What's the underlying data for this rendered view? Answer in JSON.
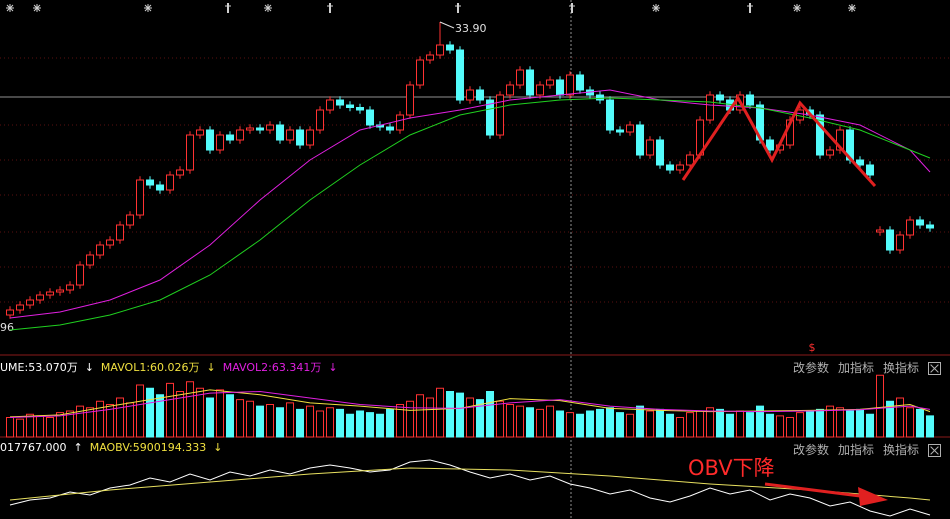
{
  "chart_data": [
    {
      "type": "candlestick",
      "up_color": "#ff3232",
      "down_color": "#54fcfc",
      "ylim": [
        20.58,
        34.78
      ],
      "high_label": "33.90",
      "low_label": "96",
      "dividend_marker": "$",
      "candles": [
        [
          22.18,
          22.53,
          22.03,
          22.38
        ],
        [
          22.38,
          22.73,
          22.23,
          22.58
        ],
        [
          22.58,
          22.93,
          22.43,
          22.78
        ],
        [
          22.78,
          23.13,
          22.63,
          22.98
        ],
        [
          22.98,
          23.25,
          22.83,
          23.1
        ],
        [
          23.1,
          23.33,
          22.95,
          23.18
        ],
        [
          23.18,
          23.53,
          23.03,
          23.38
        ],
        [
          23.38,
          24.33,
          23.23,
          24.18
        ],
        [
          24.18,
          24.73,
          24.03,
          24.58
        ],
        [
          24.58,
          25.13,
          24.43,
          24.98
        ],
        [
          24.98,
          25.33,
          24.83,
          25.18
        ],
        [
          25.18,
          25.93,
          25.03,
          25.78
        ],
        [
          25.78,
          26.33,
          25.63,
          26.18
        ],
        [
          26.18,
          27.73,
          26.03,
          27.58
        ],
        [
          27.58,
          27.73,
          27.23,
          27.38
        ],
        [
          27.38,
          27.53,
          27.03,
          27.18
        ],
        [
          27.18,
          27.93,
          27.03,
          27.78
        ],
        [
          27.78,
          28.13,
          27.63,
          27.98
        ],
        [
          27.98,
          29.53,
          27.83,
          29.38
        ],
        [
          29.38,
          29.73,
          29.23,
          29.58
        ],
        [
          29.58,
          29.73,
          28.63,
          28.78
        ],
        [
          28.78,
          29.53,
          28.63,
          29.38
        ],
        [
          29.38,
          29.53,
          29.03,
          29.18
        ],
        [
          29.18,
          29.73,
          29.03,
          29.58
        ],
        [
          29.58,
          29.81,
          29.43,
          29.66
        ],
        [
          29.66,
          29.81,
          29.43,
          29.58
        ],
        [
          29.58,
          29.93,
          29.43,
          29.78
        ],
        [
          29.78,
          29.93,
          29.03,
          29.18
        ],
        [
          29.18,
          29.73,
          29.03,
          29.58
        ],
        [
          29.58,
          29.73,
          28.83,
          28.98
        ],
        [
          28.98,
          29.73,
          28.83,
          29.58
        ],
        [
          29.58,
          30.53,
          29.43,
          30.38
        ],
        [
          30.38,
          30.93,
          30.23,
          30.78
        ],
        [
          30.78,
          30.93,
          30.43,
          30.58
        ],
        [
          30.58,
          30.73,
          30.33,
          30.48
        ],
        [
          30.48,
          30.63,
          30.23,
          30.38
        ],
        [
          30.38,
          30.53,
          29.63,
          29.78
        ],
        [
          29.78,
          29.93,
          29.55,
          29.7
        ],
        [
          29.7,
          29.85,
          29.43,
          29.58
        ],
        [
          29.58,
          30.33,
          29.43,
          30.18
        ],
        [
          30.18,
          31.53,
          30.03,
          31.38
        ],
        [
          31.38,
          32.53,
          31.23,
          32.38
        ],
        [
          32.38,
          32.73,
          32.23,
          32.58
        ],
        [
          32.58,
          33.9,
          32.43,
          32.98
        ],
        [
          32.98,
          33.13,
          32.63,
          32.78
        ],
        [
          32.78,
          32.93,
          30.63,
          30.78
        ],
        [
          30.78,
          31.33,
          30.63,
          31.18
        ],
        [
          31.18,
          31.33,
          30.63,
          30.78
        ],
        [
          30.78,
          30.93,
          29.23,
          29.38
        ],
        [
          29.38,
          31.13,
          29.23,
          30.98
        ],
        [
          30.98,
          31.53,
          30.83,
          31.38
        ],
        [
          31.38,
          32.13,
          31.23,
          31.98
        ],
        [
          31.98,
          32.13,
          30.83,
          30.98
        ],
        [
          30.98,
          31.53,
          30.83,
          31.38
        ],
        [
          31.38,
          31.73,
          31.23,
          31.58
        ],
        [
          31.58,
          31.73,
          30.83,
          30.98
        ],
        [
          30.98,
          31.93,
          30.83,
          31.78
        ],
        [
          31.78,
          31.93,
          31.03,
          31.18
        ],
        [
          31.18,
          31.33,
          30.83,
          30.98
        ],
        [
          30.98,
          31.13,
          30.63,
          30.78
        ],
        [
          30.78,
          30.93,
          29.43,
          29.58
        ],
        [
          29.58,
          29.73,
          29.35,
          29.5
        ],
        [
          29.5,
          29.93,
          29.35,
          29.78
        ],
        [
          29.78,
          29.93,
          28.43,
          28.58
        ],
        [
          28.58,
          29.33,
          28.43,
          29.18
        ],
        [
          29.18,
          29.33,
          28.03,
          28.18
        ],
        [
          28.18,
          28.33,
          27.83,
          27.98
        ],
        [
          27.98,
          28.33,
          27.83,
          28.18
        ],
        [
          28.18,
          28.73,
          28.03,
          28.58
        ],
        [
          28.58,
          30.13,
          28.43,
          29.98
        ],
        [
          29.98,
          31.13,
          29.83,
          30.98
        ],
        [
          30.98,
          31.13,
          30.63,
          30.78
        ],
        [
          30.78,
          30.93,
          30.23,
          30.38
        ],
        [
          30.38,
          31.13,
          30.23,
          30.98
        ],
        [
          30.98,
          31.13,
          30.43,
          30.58
        ],
        [
          30.58,
          30.73,
          29.03,
          29.18
        ],
        [
          29.18,
          29.33,
          28.63,
          28.78
        ],
        [
          28.78,
          29.13,
          28.63,
          28.98
        ],
        [
          28.98,
          30.13,
          28.83,
          29.98
        ],
        [
          29.98,
          30.53,
          29.83,
          30.38
        ],
        [
          30.38,
          30.53,
          30.03,
          30.18
        ],
        [
          30.18,
          30.33,
          28.43,
          28.58
        ],
        [
          28.58,
          28.93,
          28.43,
          28.78
        ],
        [
          28.78,
          29.73,
          28.63,
          29.58
        ],
        [
          29.58,
          29.73,
          28.23,
          28.38
        ],
        [
          28.38,
          28.53,
          28.03,
          28.18
        ],
        [
          28.18,
          28.33,
          27.63,
          27.78
        ],
        [
          25.5,
          25.73,
          25.35,
          25.58
        ],
        [
          25.58,
          25.73,
          24.63,
          24.78
        ],
        [
          24.78,
          25.53,
          24.63,
          25.38
        ],
        [
          25.38,
          26.13,
          25.23,
          25.98
        ],
        [
          25.98,
          26.13,
          25.63,
          25.78
        ],
        [
          25.78,
          25.93,
          25.51,
          25.66
        ]
      ],
      "series": [
        {
          "color": "#e020e0",
          "x": [
            0,
            5,
            10,
            15,
            20,
            25,
            30,
            35,
            40,
            45,
            50,
            55,
            60,
            65,
            70,
            75,
            80,
            85,
            90,
            92
          ],
          "values": [
            22.06,
            22.3,
            22.78,
            23.58,
            24.98,
            26.78,
            28.38,
            29.58,
            30.06,
            30.38,
            30.78,
            30.98,
            31.18,
            30.78,
            30.58,
            30.46,
            30.18,
            29.78,
            28.78,
            27.9
          ]
        },
        {
          "color": "#20d020",
          "x": [
            0,
            5,
            10,
            15,
            20,
            25,
            30,
            35,
            40,
            45,
            50,
            55,
            60,
            65,
            70,
            75,
            80,
            85,
            90,
            92
          ],
          "values": [
            21.58,
            21.78,
            22.18,
            22.78,
            23.78,
            25.18,
            26.78,
            28.18,
            29.38,
            30.18,
            30.58,
            30.78,
            30.86,
            30.78,
            30.7,
            30.46,
            30.06,
            29.58,
            28.78,
            28.46
          ]
        }
      ]
    },
    {
      "type": "bar",
      "ylim": [
        0,
        200
      ],
      "header": [
        {
          "text": "UME:53.070万",
          "color": "#ffffff"
        },
        {
          "text": "↓",
          "color": "#ffffff"
        },
        {
          "text": "MAVOL1:60.026万",
          "color": "#f0e040"
        },
        {
          "text": "↓",
          "color": "#f0e040"
        },
        {
          "text": "MAVOL2:63.341万",
          "color": "#e020e0"
        },
        {
          "text": "↓",
          "color": "#e020e0"
        }
      ],
      "toolbar": [
        "改参数",
        "加指标",
        "换指标"
      ],
      "values": [
        60,
        55,
        70,
        65,
        60,
        75,
        80,
        95,
        90,
        110,
        100,
        120,
        105,
        160,
        150,
        130,
        165,
        140,
        170,
        150,
        120,
        145,
        130,
        115,
        110,
        95,
        100,
        90,
        105,
        85,
        95,
        80,
        90,
        85,
        70,
        80,
        75,
        70,
        85,
        100,
        110,
        130,
        120,
        150,
        140,
        135,
        120,
        115,
        140,
        110,
        100,
        95,
        90,
        85,
        95,
        80,
        75,
        70,
        80,
        85,
        90,
        75,
        70,
        95,
        80,
        85,
        70,
        60,
        75,
        80,
        90,
        85,
        70,
        80,
        75,
        95,
        70,
        65,
        60,
        75,
        80,
        85,
        95,
        90,
        80,
        85,
        70,
        190,
        110,
        120,
        90,
        85,
        65
      ],
      "series": [
        {
          "color": "#f0e040",
          "x": [
            0,
            5,
            10,
            15,
            20,
            25,
            30,
            35,
            40,
            45,
            50,
            55,
            60,
            65,
            70,
            75,
            80,
            85,
            90,
            92
          ],
          "values": [
            62,
            68,
            95,
            120,
            145,
            130,
            105,
            95,
            82,
            88,
            118,
            112,
            88,
            82,
            78,
            80,
            82,
            85,
            100,
            78
          ]
        },
        {
          "color": "#e020e0",
          "x": [
            0,
            5,
            10,
            15,
            20,
            25,
            30,
            35,
            40,
            45,
            50,
            55,
            60,
            65,
            70,
            75,
            80,
            85,
            90,
            92
          ],
          "values": [
            60,
            65,
            85,
            110,
            135,
            140,
            120,
            100,
            90,
            88,
            105,
            115,
            95,
            85,
            80,
            78,
            80,
            84,
            95,
            85
          ]
        }
      ]
    },
    {
      "type": "line",
      "ylim": [
        5700000,
        6300000
      ],
      "header": [
        {
          "text": "017767.000",
          "color": "#ffffff"
        },
        {
          "text": "↑",
          "color": "#ffffff"
        },
        {
          "text": "MAOBV:5900194.333",
          "color": "#f0e040"
        },
        {
          "text": "↓",
          "color": "#f0e040"
        }
      ],
      "toolbar": [
        "改参数",
        "加指标",
        "换指标"
      ],
      "annotation": "OBV下降",
      "series": [
        {
          "color": "#ffffff",
          "x": [
            0,
            2,
            4,
            6,
            8,
            10,
            12,
            14,
            16,
            18,
            20,
            22,
            24,
            26,
            28,
            30,
            32,
            34,
            36,
            38,
            40,
            42,
            44,
            46,
            48,
            50,
            52,
            54,
            56,
            58,
            60,
            62,
            64,
            66,
            68,
            70,
            72,
            74,
            76,
            78,
            80,
            82,
            84,
            86,
            88,
            90,
            92
          ],
          "values": [
            5831250,
            5878125,
            5896875,
            5953125,
            5925000,
            5990625,
            6018750,
            6084375,
            6046875,
            6121875,
            6065625,
            6140625,
            6103125,
            6159375,
            6121875,
            6178125,
            6206250,
            6178125,
            6140625,
            6159375,
            6234375,
            6253125,
            6206250,
            6140625,
            6084375,
            6121875,
            6065625,
            6103125,
            6028125,
            5990625,
            5934375,
            5971875,
            5896875,
            5859375,
            5915625,
            5990625,
            5934375,
            5971875,
            5878125,
            5934375,
            5896875,
            5821875,
            5859375,
            5775000,
            5728125,
            5793750,
            5737500
          ]
        },
        {
          "color": "#e8e060",
          "x": [
            0,
            10,
            20,
            30,
            40,
            50,
            60,
            70,
            80,
            90,
            92
          ],
          "values": [
            5878125,
            5971875,
            6046875,
            6121875,
            6178125,
            6159375,
            6103125,
            6028125,
            5971875,
            5896875,
            5878125
          ]
        }
      ]
    }
  ]
}
